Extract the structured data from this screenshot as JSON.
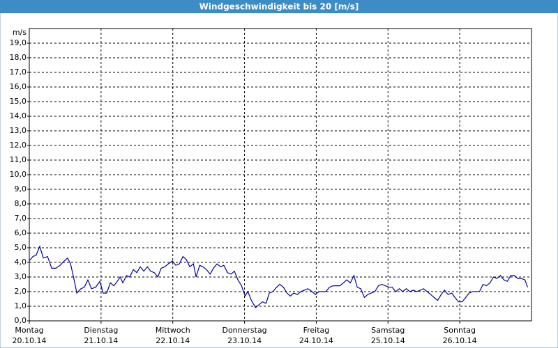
{
  "chart_data": {
    "type": "line",
    "title": "Windgeschwindigkeit bis 20 [m/s]",
    "y_unit": "m/s",
    "xlim": [
      0,
      168
    ],
    "ylim": [
      0,
      20
    ],
    "grid": true,
    "xticks": [
      {
        "value": 0,
        "label": "Montag",
        "date": "20.10.14"
      },
      {
        "value": 24,
        "label": "Dienstag",
        "date": "21.10.14"
      },
      {
        "value": 48,
        "label": "Mittwoch",
        "date": "22.10.14"
      },
      {
        "value": 72,
        "label": "Donnerstag",
        "date": "23.10.14"
      },
      {
        "value": 96,
        "label": "Freitag",
        "date": "24.10.14"
      },
      {
        "value": 120,
        "label": "Samstag",
        "date": "25.10.14"
      },
      {
        "value": 144,
        "label": "Sonntag",
        "date": "26.10.14"
      }
    ],
    "yticks": [
      {
        "value": 0,
        "label": "0,0"
      },
      {
        "value": 1,
        "label": "1,0"
      },
      {
        "value": 2,
        "label": "2,0"
      },
      {
        "value": 3,
        "label": "3,0"
      },
      {
        "value": 4,
        "label": "4,0"
      },
      {
        "value": 5,
        "label": "5,0"
      },
      {
        "value": 6,
        "label": "6,0"
      },
      {
        "value": 7,
        "label": "7,0"
      },
      {
        "value": 8,
        "label": "8,0"
      },
      {
        "value": 9,
        "label": "9,0"
      },
      {
        "value": 10,
        "label": "10,0"
      },
      {
        "value": 11,
        "label": "11,0"
      },
      {
        "value": 12,
        "label": "12,0"
      },
      {
        "value": 13,
        "label": "13,0"
      },
      {
        "value": 14,
        "label": "14,0"
      },
      {
        "value": 15,
        "label": "15,0"
      },
      {
        "value": 16,
        "label": "16,0"
      },
      {
        "value": 17,
        "label": "17,0"
      },
      {
        "value": 18,
        "label": "18,0"
      },
      {
        "value": 19,
        "label": "19,0"
      }
    ],
    "x": [
      0,
      1.2,
      2.3,
      3.5,
      4.7,
      6.1,
      7.5,
      8.9,
      10.3,
      11.7,
      12.8,
      13.8,
      14.9,
      15.9,
      17.3,
      18.4,
      19.6,
      20.8,
      22.2,
      23.6,
      24.7,
      25.9,
      27.1,
      28.3,
      29.4,
      30.4,
      31.3,
      32.5,
      33.6,
      34.8,
      36.0,
      37.1,
      38.3,
      39.5,
      40.6,
      41.8,
      43.0,
      44.1,
      45.3,
      46.5,
      47.9,
      49.0,
      50.2,
      51.4,
      52.5,
      53.7,
      54.9,
      55.8,
      57.0,
      58.1,
      59.3,
      60.5,
      61.6,
      62.8,
      64.0,
      65.1,
      66.3,
      67.5,
      68.6,
      69.8,
      71.0,
      72.2,
      73.1,
      74.3,
      75.7,
      76.8,
      78.0,
      79.2,
      80.3,
      81.5,
      82.7,
      83.8,
      85.0,
      86.2,
      87.3,
      88.5,
      89.7,
      90.8,
      92.0,
      93.2,
      94.6,
      95.7,
      96.9,
      98.1,
      99.2,
      100.4,
      101.6,
      102.7,
      103.9,
      105.1,
      106.2,
      107.4,
      108.6,
      109.7,
      110.9,
      112.1,
      113.2,
      114.4,
      115.6,
      116.8,
      117.9,
      119.1,
      120.3,
      121.4,
      122.6,
      123.8,
      124.9,
      126.1,
      127.3,
      128.4,
      129.6,
      130.8,
      131.9,
      133.1,
      134.3,
      135.4,
      136.6,
      137.8,
      138.9,
      140.1,
      141.3,
      142.4,
      143.6,
      144.8,
      146.0,
      147.1,
      148.3,
      149.4,
      150.6,
      151.8,
      152.9,
      154.1,
      155.3,
      156.4,
      157.6,
      158.8,
      159.9,
      161.1,
      162.3,
      163.4,
      164.6,
      165.8,
      166.7
    ],
    "series": [
      {
        "color": "#0000a0",
        "values": [
          4.1,
          4.4,
          4.5,
          5.1,
          4.3,
          4.4,
          3.6,
          3.6,
          3.8,
          4.1,
          4.3,
          3.9,
          2.9,
          1.9,
          2.2,
          2.3,
          2.8,
          2.2,
          2.3,
          2.7,
          1.9,
          1.9,
          2.6,
          2.4,
          2.7,
          3.0,
          2.6,
          3.1,
          3.0,
          3.5,
          3.3,
          3.7,
          3.4,
          3.7,
          3.4,
          3.3,
          3.0,
          3.6,
          3.7,
          3.9,
          4.1,
          3.8,
          3.9,
          4.4,
          4.2,
          3.7,
          3.9,
          3.0,
          3.8,
          3.7,
          3.5,
          3.2,
          3.6,
          3.9,
          3.7,
          3.8,
          3.3,
          3.2,
          3.4,
          2.8,
          2.4,
          1.7,
          2.0,
          1.4,
          0.9,
          1.1,
          1.3,
          1.2,
          1.9,
          2.0,
          2.3,
          2.5,
          2.3,
          1.9,
          1.7,
          1.9,
          1.8,
          2.0,
          2.1,
          2.2,
          2.0,
          1.8,
          2.0,
          2.0,
          2.0,
          2.3,
          2.4,
          2.4,
          2.4,
          2.6,
          2.8,
          2.6,
          3.1,
          2.3,
          2.2,
          1.6,
          1.8,
          1.9,
          2.0,
          2.4,
          2.5,
          2.4,
          2.3,
          2.3,
          2.0,
          2.2,
          2.0,
          2.2,
          2.0,
          2.1,
          2.0,
          2.1,
          2.2,
          2.0,
          1.8,
          1.6,
          1.4,
          1.8,
          2.1,
          1.8,
          1.9,
          1.6,
          1.3,
          1.3,
          1.6,
          1.9,
          2.0,
          2.0,
          2.0,
          2.5,
          2.4,
          2.6,
          3.0,
          2.9,
          3.1,
          2.8,
          2.7,
          3.1,
          3.1,
          2.9,
          2.9,
          2.8,
          2.3
        ]
      }
    ]
  }
}
